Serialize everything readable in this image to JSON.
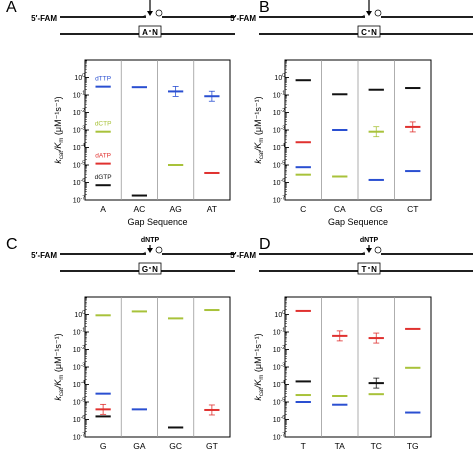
{
  "colors": {
    "dTTP": "#2a4fd1",
    "dCTP": "#a8c23a",
    "dATP": "#e0312f",
    "dGTP": "#111111",
    "axis": "#000000",
    "divider": "#9a9a9a"
  },
  "shared": {
    "ylabel_k": "k",
    "ylabel_k_sub": "cat",
    "ylabel_K": "/K",
    "ylabel_K_sub": "m",
    "ylabel_unit": "(μM⁻¹s⁻¹)",
    "xlabel": "Gap Sequence",
    "primer_label": "5′-FAM",
    "dntp_label": "dNTP",
    "y_ticks": [
      {
        "value": 1,
        "base": "10",
        "exp": "0"
      },
      {
        "value": 0.1,
        "base": "10",
        "exp": "-1"
      },
      {
        "value": 0.01,
        "base": "10",
        "exp": "-2"
      },
      {
        "value": 0.001,
        "base": "10",
        "exp": "-3"
      },
      {
        "value": 0.0001,
        "base": "10",
        "exp": "-4"
      },
      {
        "value": 1e-05,
        "base": "10",
        "exp": "-5"
      },
      {
        "value": 1e-06,
        "base": "10",
        "exp": "-6"
      },
      {
        "value": 1e-07,
        "base": "10",
        "exp": "-7"
      }
    ]
  },
  "chart_data": [
    {
      "panel": "A",
      "type": "scatter",
      "yscale": "log",
      "ylim": [
        1e-07,
        10
      ],
      "template_left": "A",
      "template_right": "N",
      "categories": [
        "A",
        "AC",
        "AG",
        "AT"
      ],
      "legend": [
        {
          "label": "dTTP",
          "color": "#2a4fd1"
        },
        {
          "label": "dCTP",
          "color": "#a8c23a"
        },
        {
          "label": "dATP",
          "color": "#e0312f"
        },
        {
          "label": "dGTP",
          "color": "#111111"
        }
      ],
      "series": [
        {
          "name": "dTTP",
          "values": [
            0.3,
            0.28,
            0.16,
            0.085
          ],
          "err": [
            false,
            false,
            true,
            true
          ]
        },
        {
          "name": "dCTP",
          "values": [
            0.0008,
            null,
            1e-05,
            null
          ]
        },
        {
          "name": "dATP",
          "values": [
            1.2e-05,
            null,
            null,
            3.5e-06
          ]
        },
        {
          "name": "dGTP",
          "values": [
            7e-07,
            1.8e-07,
            null,
            null
          ]
        }
      ]
    },
    {
      "panel": "B",
      "type": "scatter",
      "yscale": "log",
      "ylim": [
        1e-07,
        10
      ],
      "template_left": "C",
      "template_right": "N",
      "categories": [
        "C",
        "CA",
        "CG",
        "CT"
      ],
      "series": [
        {
          "name": "dGTP",
          "values": [
            0.7,
            0.11,
            0.2,
            0.25
          ]
        },
        {
          "name": "dATP",
          "values": [
            0.0002,
            null,
            null,
            0.0015
          ],
          "err": [
            false,
            false,
            false,
            true
          ]
        },
        {
          "name": "dTTP",
          "values": [
            7.5e-06,
            0.001,
            1.4e-06,
            4.5e-06
          ]
        },
        {
          "name": "dCTP",
          "values": [
            2.8e-06,
            2.2e-06,
            0.0008,
            null
          ],
          "err": [
            false,
            false,
            true,
            false
          ]
        }
      ]
    },
    {
      "panel": "C",
      "type": "scatter",
      "yscale": "log",
      "ylim": [
        1e-07,
        10
      ],
      "template_left": "G",
      "template_right": "N",
      "categories": [
        "G",
        "GA",
        "GC",
        "GT"
      ],
      "series": [
        {
          "name": "dCTP",
          "values": [
            0.9,
            1.5,
            0.6,
            1.8
          ]
        },
        {
          "name": "dTTP",
          "values": [
            3e-05,
            3.8e-06,
            null,
            null
          ]
        },
        {
          "name": "dATP",
          "values": [
            3.8e-06,
            null,
            null,
            3.5e-06
          ],
          "err": [
            true,
            false,
            false,
            true
          ]
        },
        {
          "name": "dGTP",
          "values": [
            1.5e-06,
            null,
            3.5e-07,
            null
          ]
        }
      ]
    },
    {
      "panel": "D",
      "type": "scatter",
      "yscale": "log",
      "ylim": [
        1e-07,
        10
      ],
      "template_left": "T",
      "template_right": "N",
      "categories": [
        "T",
        "TA",
        "TC",
        "TG"
      ],
      "series": [
        {
          "name": "dATP",
          "values": [
            1.6,
            0.06,
            0.045,
            0.15
          ],
          "err": [
            false,
            true,
            true,
            false
          ]
        },
        {
          "name": "dGTP",
          "values": [
            0.00015,
            null,
            0.00012,
            null
          ],
          "err": [
            false,
            false,
            true,
            false
          ]
        },
        {
          "name": "dCTP",
          "values": [
            2.5e-05,
            2.2e-05,
            2.8e-05,
            0.0009
          ]
        },
        {
          "name": "dTTP",
          "values": [
            1e-05,
            7e-06,
            null,
            2.5e-06
          ]
        }
      ]
    }
  ]
}
